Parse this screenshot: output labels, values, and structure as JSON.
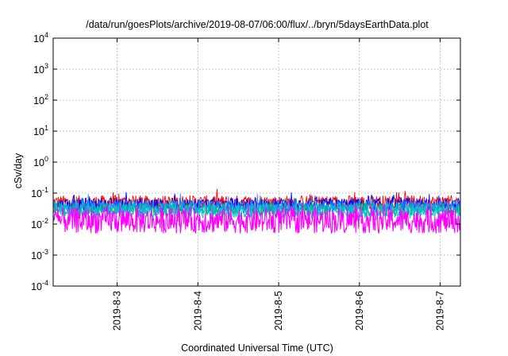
{
  "chart_data": {
    "type": "line",
    "title": "/data/run/goesPlots/archive/2019-08-07/06:00/flux/../bryn/5daysEarthData.plot",
    "xlabel": "Coordinated Universal Time (UTC)",
    "ylabel": "cSv/day",
    "yscale": "log",
    "ylim": [
      0.0001,
      10000
    ],
    "xlim": [
      "2019-08-02 05:00",
      "2019-08-07 06:00"
    ],
    "grid": true,
    "y_ticks": [
      {
        "base": "10",
        "exp": "-4",
        "value": 0.0001
      },
      {
        "base": "10",
        "exp": "-3",
        "value": 0.001
      },
      {
        "base": "10",
        "exp": "-2",
        "value": 0.01
      },
      {
        "base": "10",
        "exp": "-1",
        "value": 0.1
      },
      {
        "base": "10",
        "exp": "0",
        "value": 1
      },
      {
        "base": "10",
        "exp": "1",
        "value": 10
      },
      {
        "base": "10",
        "exp": "2",
        "value": 100
      },
      {
        "base": "10",
        "exp": "3",
        "value": 1000
      },
      {
        "base": "10",
        "exp": "4",
        "value": 10000
      }
    ],
    "x_ticks": [
      {
        "label": "2019-8-3",
        "value": "2019-08-03 00:00"
      },
      {
        "label": "2019-8-4",
        "value": "2019-08-04 00:00"
      },
      {
        "label": "2019-8-5",
        "value": "2019-08-05 00:00"
      },
      {
        "label": "2019-8-6",
        "value": "2019-08-06 00:00"
      },
      {
        "label": "2019-8-7",
        "value": "2019-08-07 00:00"
      }
    ],
    "series": [
      {
        "color": "#ff0000",
        "typical_low": 0.03,
        "typical_high": 0.085
      },
      {
        "color": "#0000ff",
        "typical_low": 0.025,
        "typical_high": 0.07
      },
      {
        "color": "#00b050",
        "typical_low": 0.018,
        "typical_high": 0.05
      },
      {
        "color": "#1e90ff",
        "typical_low": 0.022,
        "typical_high": 0.06
      },
      {
        "color": "#00c8c8",
        "typical_low": 0.015,
        "typical_high": 0.045
      },
      {
        "color": "#ff00ff",
        "typical_low": 0.005,
        "typical_high": 0.035
      }
    ]
  }
}
